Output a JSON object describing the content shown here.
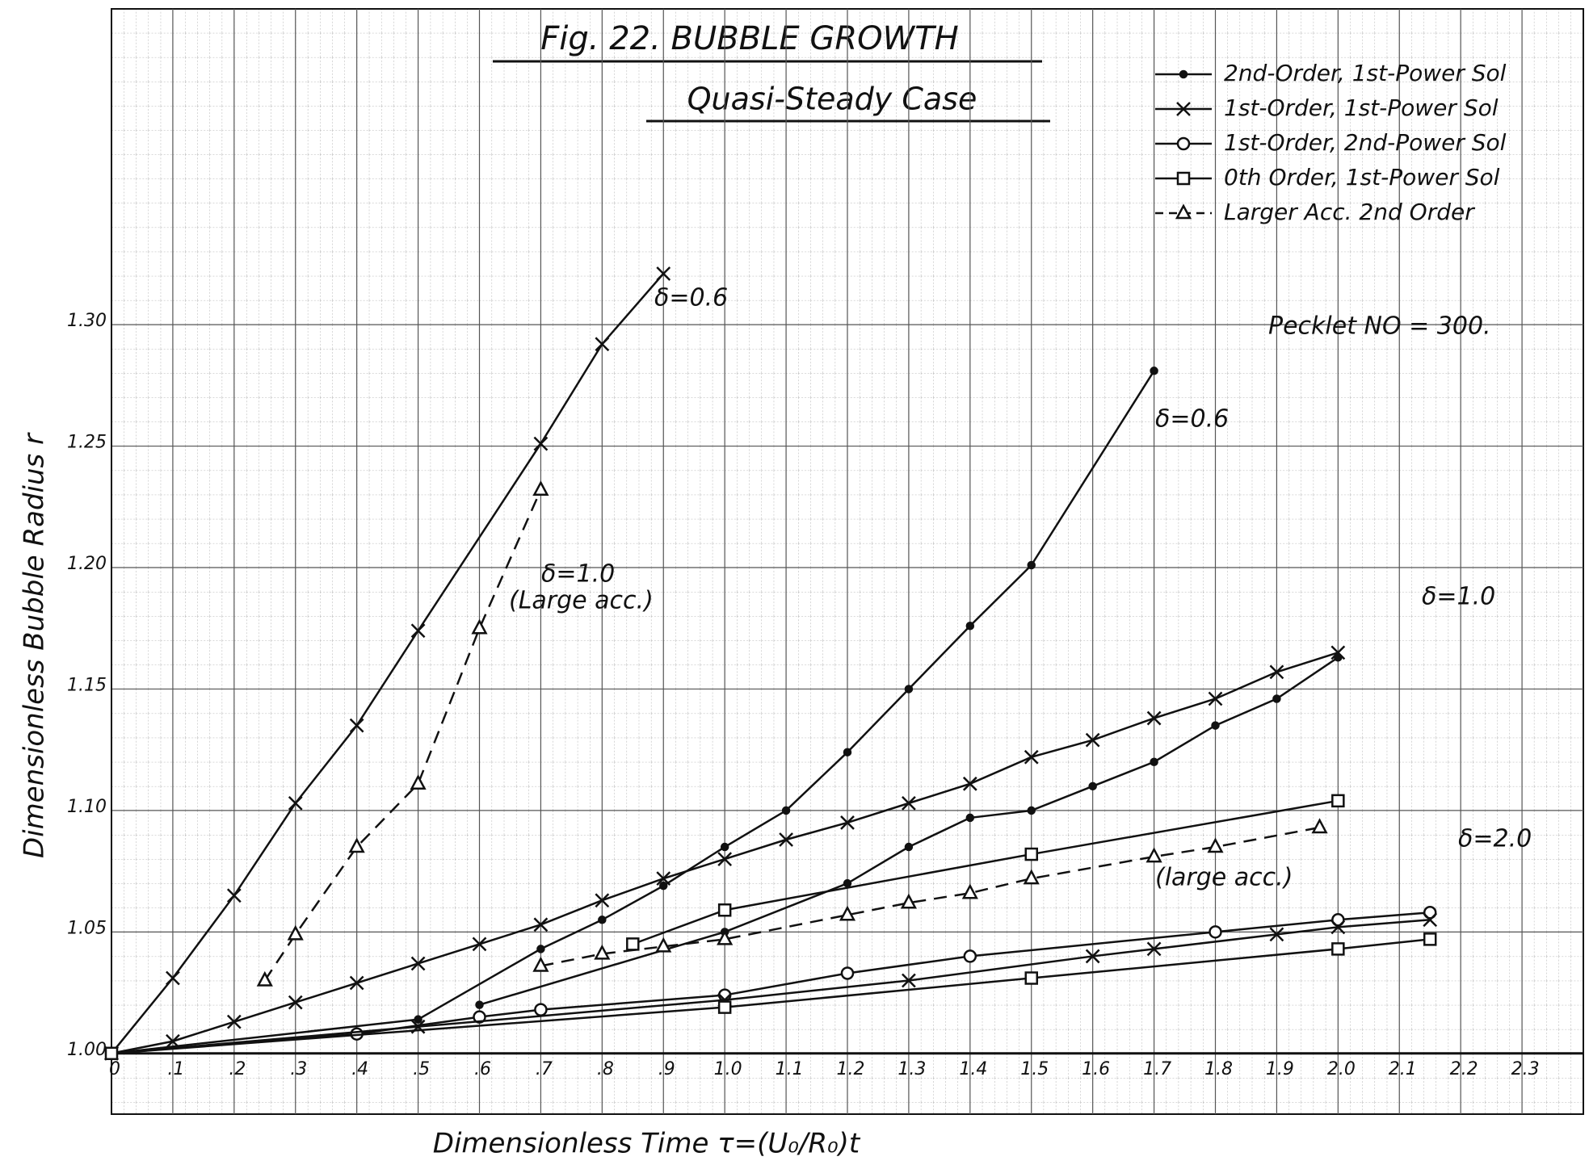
{
  "chart_data": {
    "type": "line",
    "title": "Fig. 22. BUBBLE GROWTH",
    "subtitle": "Quasi-Steady Case",
    "x_label": "Dimensionless Time τ=(U₀/R₀)t",
    "y_label": "Dimensionless Bubble Radius r",
    "xlim": [
      0,
      2.4
    ],
    "ylim": [
      0.975,
      1.43
    ],
    "xticks": [
      {
        "value": 0,
        "label": "0"
      },
      {
        "value": 0.1,
        "label": ".1"
      },
      {
        "value": 0.2,
        "label": ".2"
      },
      {
        "value": 0.3,
        "label": ".3"
      },
      {
        "value": 0.4,
        "label": ".4"
      },
      {
        "value": 0.5,
        "label": ".5"
      },
      {
        "value": 0.6,
        "label": ".6"
      },
      {
        "value": 0.7,
        "label": ".7"
      },
      {
        "value": 0.8,
        "label": ".8"
      },
      {
        "value": 0.9,
        "label": ".9"
      },
      {
        "value": 1.0,
        "label": "1.0"
      },
      1.1,
      1.2,
      1.3,
      1.4,
      1.5,
      1.6,
      1.7,
      1.8,
      1.9,
      {
        "value": 2.0,
        "label": "2.0"
      },
      2.1,
      2.2,
      2.3
    ],
    "yticks": [
      {
        "value": 1.0,
        "label": "1.00"
      },
      1.05,
      {
        "value": 1.1,
        "label": "1.10"
      },
      1.15,
      {
        "value": 1.2,
        "label": "1.20"
      },
      1.25,
      {
        "value": 1.3,
        "label": "1.30"
      }
    ],
    "grid": true,
    "color": "#111",
    "legend": [
      {
        "label": "2nd-Order, 1st-Power Sol",
        "marker": "dot",
        "dash": false
      },
      {
        "label": "1st-Order, 1st-Power Sol",
        "marker": "x",
        "dash": false
      },
      {
        "label": "1st-Order, 2nd-Power Sol",
        "marker": "circle",
        "dash": false
      },
      {
        "label": "0th Order, 1st-Power Sol",
        "marker": "square",
        "dash": false
      },
      {
        "label": "Larger Acc. 2nd Order",
        "marker": "triangle",
        "dash": true
      }
    ],
    "series": [
      {
        "marker": "x",
        "dash": false,
        "x": [
          0,
          0.1,
          0.2,
          0.3,
          0.4,
          0.5,
          0.7,
          0.8,
          0.9
        ],
        "values": [
          1.0,
          1.031,
          1.065,
          1.103,
          1.135,
          1.174,
          1.251,
          1.292,
          1.321
        ]
      },
      {
        "marker": "x",
        "dash": false,
        "x": [
          0,
          0.1,
          0.2,
          0.3,
          0.4,
          0.5,
          0.6,
          0.7,
          0.8,
          0.9,
          1.0,
          1.1,
          1.2,
          1.3,
          1.4,
          1.5,
          1.6,
          1.7,
          1.8,
          1.9,
          2.0
        ],
        "values": [
          1.0,
          1.005,
          1.013,
          1.021,
          1.029,
          1.037,
          1.045,
          1.053,
          1.063,
          1.072,
          1.08,
          1.088,
          1.095,
          1.103,
          1.111,
          1.122,
          1.129,
          1.138,
          1.146,
          1.157,
          1.165
        ]
      },
      {
        "marker": "triangle",
        "dash": true,
        "x": [
          0.25,
          0.3,
          0.4,
          0.5,
          0.6,
          0.7
        ],
        "values": [
          1.03,
          1.049,
          1.085,
          1.111,
          1.175,
          1.232
        ]
      },
      {
        "marker": "dot",
        "dash": false,
        "x": [
          0,
          0.5,
          0.7,
          0.8,
          0.9,
          1.0,
          1.1,
          1.2,
          1.3,
          1.4,
          1.5,
          1.7
        ],
        "values": [
          1.0,
          1.014,
          1.043,
          1.055,
          1.069,
          1.085,
          1.1,
          1.124,
          1.15,
          1.176,
          1.201,
          1.281
        ]
      },
      {
        "marker": "dot",
        "dash": false,
        "x": [
          0.6,
          1.0,
          1.2,
          1.3,
          1.4,
          1.5,
          1.6,
          1.7,
          1.8,
          1.9,
          2.0
        ],
        "values": [
          1.02,
          1.05,
          1.07,
          1.085,
          1.097,
          1.1,
          1.11,
          1.12,
          1.135,
          1.146,
          1.163
        ]
      },
      {
        "marker": "square",
        "dash": false,
        "x": [
          0.85,
          1.0,
          1.5,
          2.0
        ],
        "values": [
          1.045,
          1.059,
          1.082,
          1.104
        ]
      },
      {
        "marker": "triangle",
        "dash": true,
        "x": [
          0.7,
          0.8,
          0.9,
          1.0,
          1.2,
          1.3,
          1.4,
          1.5,
          1.7,
          1.8,
          1.97
        ],
        "values": [
          1.036,
          1.041,
          1.044,
          1.047,
          1.057,
          1.062,
          1.066,
          1.072,
          1.081,
          1.085,
          1.093
        ]
      },
      {
        "marker": "circle",
        "dash": false,
        "x": [
          0,
          0.4,
          0.6,
          0.7,
          1.0,
          1.2,
          1.4,
          1.8,
          2.0,
          2.15
        ],
        "values": [
          1.0,
          1.008,
          1.015,
          1.018,
          1.024,
          1.033,
          1.04,
          1.05,
          1.055,
          1.058
        ]
      },
      {
        "marker": "x",
        "dash": false,
        "x": [
          0,
          0.5,
          1.0,
          1.3,
          1.6,
          1.7,
          1.9,
          2.0,
          2.15
        ],
        "values": [
          1.0,
          1.011,
          1.022,
          1.03,
          1.04,
          1.043,
          1.049,
          1.052,
          1.055
        ]
      },
      {
        "marker": "square",
        "dash": false,
        "x": [
          0,
          1.0,
          1.5,
          2.0,
          2.15
        ],
        "values": [
          1.0,
          1.019,
          1.031,
          1.043,
          1.047
        ]
      }
    ],
    "annotations": [
      "Pecklet NO = 300.",
      "δ=0.6",
      "δ=0.6",
      "δ=1.0",
      "(Large acc.)",
      "δ=1.0",
      "δ=2.0",
      "(large acc.)"
    ]
  }
}
